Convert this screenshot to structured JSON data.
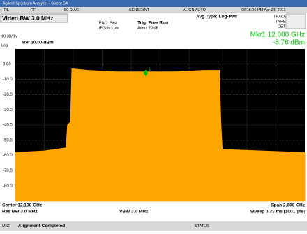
{
  "window_title": "Agilent Spectrum Analyzer - Swept SA",
  "status_bar": [
    "RL",
    "RF",
    "50 Ω AC",
    "SENSE:INT",
    "ALIGN AUTO",
    "02:15:26 PM Apr 28, 2011"
  ],
  "active_function": "Video BW 3.0 MHz",
  "settings": {
    "pno": "PNO: Fast",
    "if_gain": "IFGain:Low",
    "trigger": "Trig: Free Run",
    "attenuation": "Atten: 20 dB",
    "avg_type": "Avg Type: Log-Pwr"
  },
  "trace_panel": {
    "trace": "TRACE",
    "type": "TYPE",
    "det": "DET"
  },
  "marker": {
    "frequency_label": "Mkr1 12.000 GHz",
    "level_label": "-5.76 dBm",
    "name": "1",
    "x": 12.0,
    "y": -5.76,
    "color": "#00c000"
  },
  "scale_label": "10 dB/div",
  "ref_level": "Ref 10.00 dBm",
  "scale_type": "Log",
  "chart_data": {
    "type": "area",
    "xlim": [
      11.1,
      13.1
    ],
    "ylim": [
      -90,
      10
    ],
    "yticks": [
      {
        "value": 0,
        "label": "0.00"
      },
      {
        "value": -10,
        "label": "-10.0"
      },
      {
        "value": -20,
        "label": "-20.0"
      },
      {
        "value": -30,
        "label": "-30.0"
      },
      {
        "value": -40,
        "label": "-40.0"
      },
      {
        "value": -50,
        "label": "-50.0"
      },
      {
        "value": -60,
        "label": "-60.0"
      },
      {
        "value": -70,
        "label": "-70.0"
      },
      {
        "value": -80,
        "label": "-80.0"
      }
    ],
    "grid": true,
    "x": [
      11.1,
      11.3,
      11.45,
      11.46,
      11.48,
      11.49,
      11.6,
      11.8,
      12.0,
      12.2,
      12.4,
      12.51,
      12.52,
      12.53,
      12.8,
      13.1
    ],
    "values": [
      -58,
      -57,
      -55,
      -40,
      -38,
      -3,
      -4,
      -5,
      -5,
      -5,
      -4,
      -4,
      -38,
      -56,
      -57,
      -58
    ],
    "color": "#ffa500"
  },
  "footer": {
    "center": "Center 12.100 GHz",
    "res_bw": "Res BW 3.0 MHz",
    "vbw": "VBW 3.0 MHz",
    "span": "Span 2.000 GHz",
    "sweep": "Sweep 3.33 ms (1001 pts)"
  },
  "message_bar": {
    "label": "MSG",
    "message": "Alignment Completed",
    "status": "STATUS"
  }
}
